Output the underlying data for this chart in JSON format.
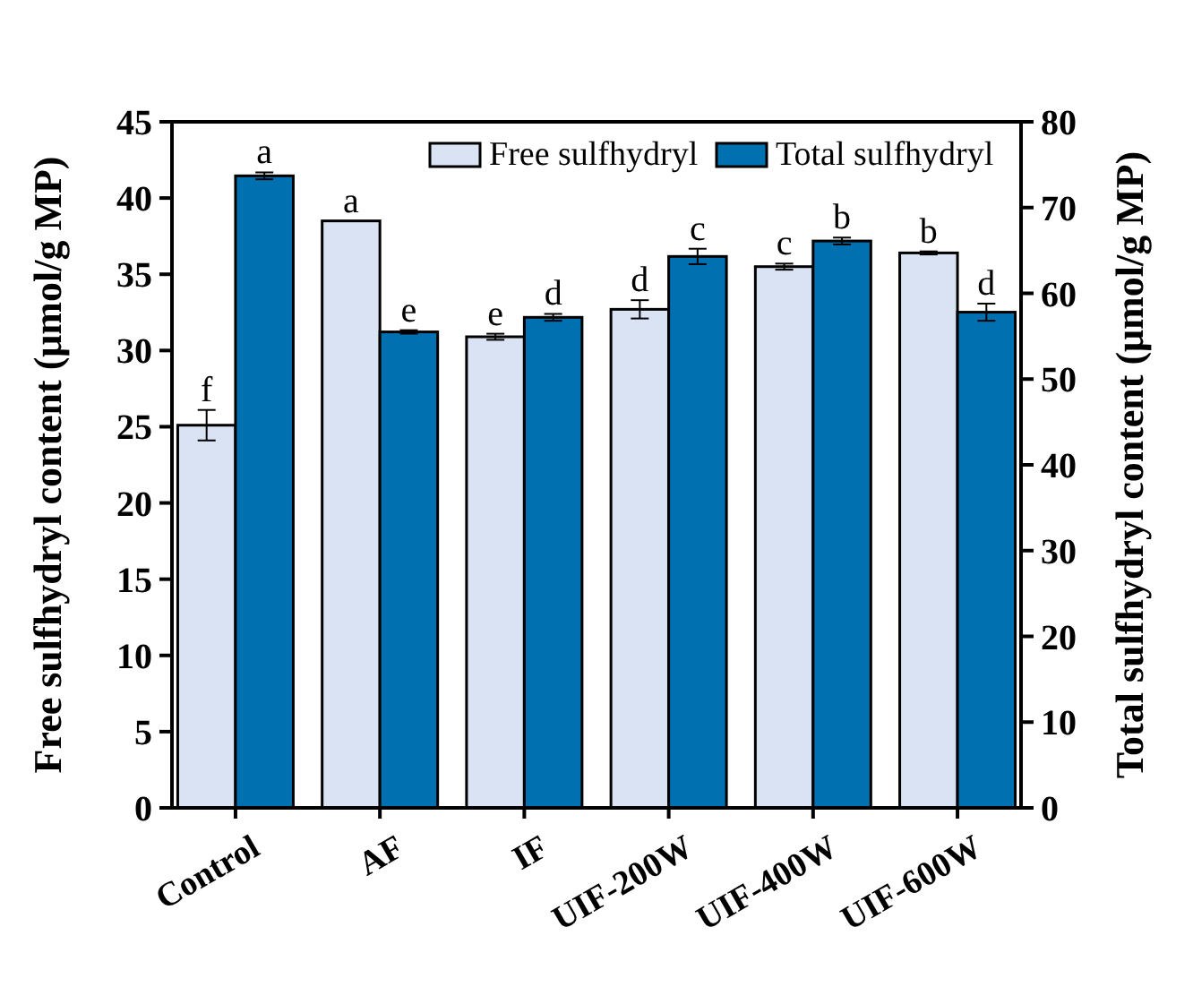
{
  "chart_data": {
    "type": "bar",
    "categories": [
      "Control",
      "AF",
      "IF",
      "UIF-200W",
      "UIF-400W",
      "UIF-600W"
    ],
    "ylabel": "Free sulfhydryl content (μmol/g MP)",
    "y2label": "Total sulfhydryl content (μmol/g MP)",
    "ylim": [
      0,
      45
    ],
    "yticks": [
      0,
      5,
      10,
      15,
      20,
      25,
      30,
      35,
      40,
      45
    ],
    "y2lim": [
      0,
      80
    ],
    "y2ticks": [
      0,
      10,
      20,
      30,
      40,
      50,
      60,
      70,
      80
    ],
    "legend": "top right",
    "grid": false,
    "series": [
      {
        "name": "Free sulfhydryl",
        "color": "#dae3f3",
        "values": [
          25.1,
          38.5,
          30.9,
          32.7,
          35.5,
          36.4
        ],
        "errors": [
          1.0,
          null,
          0.2,
          0.6,
          0.2,
          0.1
        ],
        "value_labels": [
          "f",
          "a",
          "e",
          "d",
          "c",
          "b"
        ]
      },
      {
        "name": "Total sulfhydryl",
        "color": "#0070b0",
        "axis": "y2",
        "values": [
          73.7,
          55.5,
          57.2,
          64.3,
          66.1,
          57.8
        ],
        "errors": [
          0.4,
          0.2,
          0.4,
          0.9,
          0.4,
          1.0
        ],
        "value_labels": [
          "a",
          "e",
          "d",
          "c",
          "b",
          "d"
        ]
      }
    ]
  }
}
